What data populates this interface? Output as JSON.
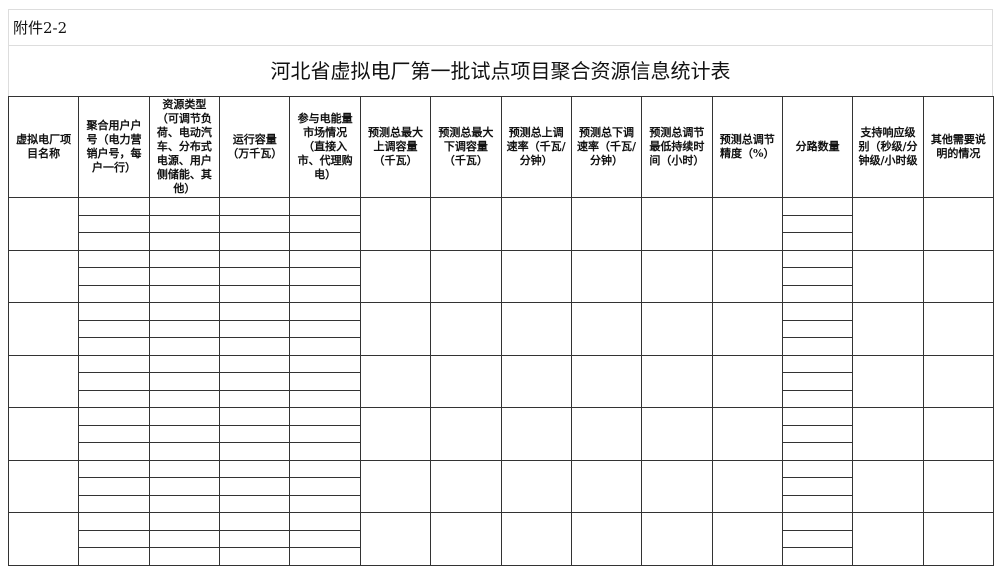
{
  "annex_label": "附件2-2",
  "title": "河北省虚拟电厂第一批试点项目聚合资源信息统计表",
  "columns": [
    "虚拟电厂项目名称",
    "聚合用户户号（电力营销户号，每户一行）",
    "资源类型（可调节负荷、电动汽车、分布式电源、用户侧储能、其他）",
    "运行容量（万千瓦）",
    "参与电能量市场情况（直接入市、代理购电）",
    "预测总最大上调容量（千瓦）",
    "预测总最大下调容量（千瓦）",
    "预测总上调速率（千瓦/分钟）",
    "预测总下调速率（千瓦/分钟）",
    "预测总调节最低持续时间（小时）",
    "预测总调节精度（%）",
    "分路数量",
    "支持响应级别（秒级/分钟级/小时级",
    "其他需要说明的情况"
  ],
  "project_groups": 7,
  "sub_rows_per_group": 3
}
